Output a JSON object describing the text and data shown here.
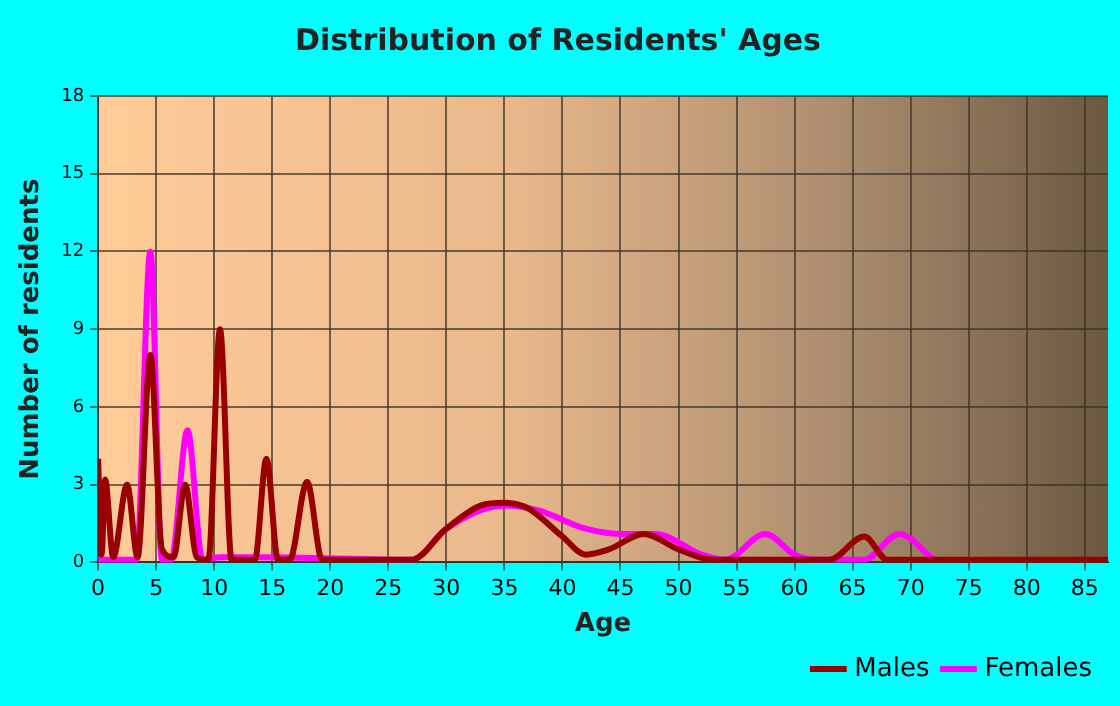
{
  "chart_data": {
    "type": "line",
    "title": "Distribution of Residents' Ages",
    "xlabel": "Age",
    "ylabel": "Number of residents",
    "xlim": [
      0,
      87
    ],
    "xticks": [
      0,
      5,
      10,
      15,
      20,
      25,
      30,
      35,
      40,
      45,
      50,
      55,
      60,
      65,
      70,
      75,
      80,
      85
    ],
    "ylim": [
      0,
      18
    ],
    "yticks": [
      0,
      3,
      6,
      9,
      12,
      15,
      18
    ],
    "grid": true,
    "legend": "bottom right",
    "marker": "none",
    "line_style": "solid",
    "series": [
      {
        "name": "Males",
        "color": "#990000",
        "x": [
          0,
          0.3,
          0.6,
          1.3,
          2.5,
          3.4,
          4.5,
          5.5,
          6.5,
          7.5,
          8.5,
          9.5,
          10.5,
          11.5,
          13.5,
          14.5,
          15.5,
          16.5,
          18,
          19.3,
          22,
          25,
          27,
          30,
          33,
          35,
          37,
          40,
          42,
          44,
          47,
          50,
          53,
          60,
          63,
          66,
          68,
          87
        ],
        "values": [
          4,
          0.3,
          3.2,
          0.2,
          3,
          0.2,
          8,
          0.5,
          0.2,
          3,
          0.2,
          0.1,
          9,
          0.1,
          0.1,
          4,
          0.1,
          0.1,
          3.1,
          0.1,
          0.1,
          0.1,
          0.1,
          1.3,
          2.2,
          2.3,
          2.1,
          1,
          0.3,
          0.5,
          1.1,
          0.5,
          0.1,
          0.1,
          0.1,
          1,
          0.1,
          0.1
        ]
      },
      {
        "name": "Females",
        "color": "#ff00ff",
        "x": [
          0,
          3.3,
          4.5,
          5.5,
          6.3,
          7.7,
          9,
          10.5,
          14,
          27,
          30,
          35,
          38,
          42,
          45,
          48,
          52,
          54,
          57.5,
          60,
          62,
          66,
          69,
          72
        ],
        "values": [
          0.1,
          0.1,
          12,
          0.1,
          0.1,
          5.1,
          0.1,
          0.2,
          0.2,
          0.1,
          1.3,
          2.2,
          2,
          1.3,
          1.1,
          1.1,
          0.3,
          0.1,
          1.1,
          0.3,
          0.1,
          0.1,
          1.1,
          0.1
        ]
      }
    ]
  }
}
